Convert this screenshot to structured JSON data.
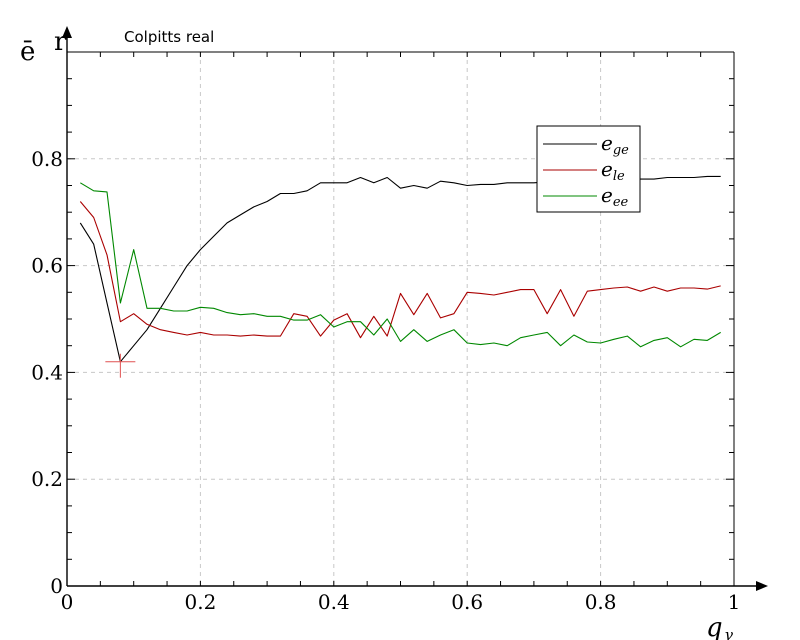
{
  "chart_data": {
    "type": "line",
    "title": "Colpitts real",
    "ylabel": "ē",
    "ylabel_extra": "r",
    "xlabel": "q",
    "xlabel_sub": "γ",
    "xlim": [
      0,
      1
    ],
    "ylim": [
      0,
      1
    ],
    "grid": true,
    "legend_position": "top-right",
    "x_ticks": [
      {
        "value": 0,
        "label": "0"
      },
      {
        "value": 0.2,
        "label": "0.2"
      },
      {
        "value": 0.4,
        "label": "0.4"
      },
      {
        "value": 0.6,
        "label": "0.6"
      },
      {
        "value": 0.8,
        "label": "0.8"
      },
      {
        "value": 1,
        "label": "1"
      }
    ],
    "y_ticks": [
      {
        "value": 0,
        "label": "0"
      },
      {
        "value": 0.2,
        "label": "0.2"
      },
      {
        "value": 0.4,
        "label": "0.4"
      },
      {
        "value": 0.6,
        "label": "0.6"
      },
      {
        "value": 0.8,
        "label": "0.8"
      }
    ],
    "x": [
      0.02,
      0.04,
      0.06,
      0.08,
      0.1,
      0.12,
      0.14,
      0.16,
      0.18,
      0.2,
      0.22,
      0.24,
      0.26,
      0.28,
      0.3,
      0.32,
      0.34,
      0.36,
      0.38,
      0.4,
      0.42,
      0.44,
      0.46,
      0.48,
      0.5,
      0.52,
      0.54,
      0.56,
      0.58,
      0.6,
      0.62,
      0.64,
      0.66,
      0.68,
      0.7,
      0.72,
      0.74,
      0.76,
      0.78,
      0.8,
      0.82,
      0.84,
      0.86,
      0.88,
      0.9,
      0.92,
      0.94,
      0.96,
      0.98
    ],
    "series": [
      {
        "name": "e",
        "name_sub": "ge",
        "color": "#000000",
        "values": [
          0.68,
          0.64,
          0.53,
          0.42,
          0.45,
          0.48,
          0.52,
          0.56,
          0.6,
          0.63,
          0.655,
          0.68,
          0.695,
          0.71,
          0.72,
          0.735,
          0.735,
          0.74,
          0.755,
          0.755,
          0.755,
          0.765,
          0.755,
          0.765,
          0.745,
          0.75,
          0.745,
          0.758,
          0.755,
          0.75,
          0.752,
          0.752,
          0.755,
          0.755,
          0.755,
          0.757,
          0.758,
          0.758,
          0.758,
          0.76,
          0.76,
          0.762,
          0.762,
          0.762,
          0.765,
          0.765,
          0.765,
          0.767,
          0.767
        ]
      },
      {
        "name": "e",
        "name_sub": "le",
        "color": "#aa0000",
        "values": [
          0.72,
          0.69,
          0.62,
          0.495,
          0.51,
          0.49,
          0.48,
          0.475,
          0.47,
          0.475,
          0.47,
          0.47,
          0.468,
          0.47,
          0.468,
          0.468,
          0.51,
          0.505,
          0.468,
          0.498,
          0.51,
          0.465,
          0.505,
          0.468,
          0.548,
          0.508,
          0.548,
          0.502,
          0.51,
          0.55,
          0.548,
          0.545,
          0.55,
          0.555,
          0.555,
          0.51,
          0.555,
          0.505,
          0.552,
          0.555,
          0.558,
          0.56,
          0.552,
          0.56,
          0.552,
          0.558,
          0.558,
          0.556,
          0.562
        ]
      },
      {
        "name": "e",
        "name_sub": "ee",
        "color": "#008800",
        "values": [
          0.755,
          0.74,
          0.738,
          0.53,
          0.63,
          0.52,
          0.52,
          0.515,
          0.515,
          0.522,
          0.52,
          0.512,
          0.508,
          0.51,
          0.505,
          0.505,
          0.498,
          0.498,
          0.508,
          0.485,
          0.495,
          0.495,
          0.47,
          0.5,
          0.458,
          0.48,
          0.458,
          0.47,
          0.48,
          0.455,
          0.452,
          0.455,
          0.45,
          0.465,
          0.47,
          0.475,
          0.45,
          0.47,
          0.457,
          0.455,
          0.462,
          0.468,
          0.448,
          0.46,
          0.465,
          0.448,
          0.462,
          0.46,
          0.475
        ]
      }
    ],
    "marker": {
      "x": 0.08,
      "y": 0.42,
      "color": "#e05050"
    }
  }
}
